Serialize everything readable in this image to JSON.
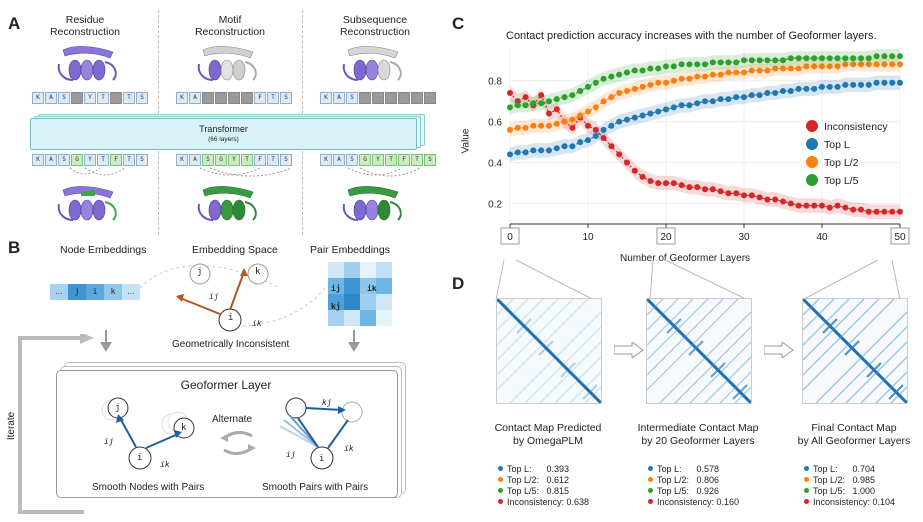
{
  "panels": {
    "a_letter": "A",
    "b_letter": "B",
    "c_letter": "C",
    "d_letter": "D"
  },
  "panel_a": {
    "col1_title": "Residue\nReconstruction",
    "col2_title": "Motif\nReconstruction",
    "col3_title": "Subsequence\nReconstruction",
    "transformer_title": "Transformer",
    "transformer_sub": "(66 layers)",
    "row1_col1": [
      "K",
      "A",
      "S",
      "",
      "Y",
      "T",
      "",
      "T",
      "S"
    ],
    "row1_col1_masked": [
      false,
      false,
      false,
      true,
      false,
      false,
      true,
      false,
      false
    ],
    "row1_col2": [
      "K",
      "A",
      "",
      "",
      "",
      "",
      "F",
      "T",
      "S"
    ],
    "row1_col2_masked": [
      false,
      false,
      true,
      true,
      true,
      true,
      false,
      false,
      false
    ],
    "row1_col3": [
      "K",
      "A",
      "S",
      "",
      "",
      "",
      "",
      "",
      ""
    ],
    "row1_col3_masked": [
      false,
      false,
      false,
      true,
      true,
      true,
      true,
      true,
      true
    ],
    "row2": [
      "K",
      "A",
      "S",
      "G",
      "Y",
      "T",
      "F",
      "T",
      "S"
    ],
    "row2_col1_green": [
      false,
      false,
      false,
      true,
      false,
      false,
      true,
      false,
      false
    ],
    "row2_col2_green": [
      false,
      false,
      true,
      true,
      true,
      true,
      false,
      false,
      false
    ],
    "row2_col3_green": [
      false,
      false,
      false,
      true,
      true,
      true,
      true,
      true,
      true
    ]
  },
  "panel_b": {
    "node_embeddings": "Node Embeddings",
    "embedding_space": "Embedding Space",
    "pair_embeddings": "Pair Embeddings",
    "node_cells": [
      "…",
      "j",
      "i",
      "k",
      "…"
    ],
    "pair_cells": [
      "ij",
      "ik",
      "kj"
    ],
    "node_i": "i",
    "node_j": "j",
    "node_k": "k",
    "edge_ij": "ij",
    "edge_ik": "ik",
    "edge_kj": "kj",
    "geo_inconsistent": "Geometrically Inconsistent",
    "geoformer_layer": "Geoformer Layer",
    "alternate": "Alternate",
    "smooth_nodes": "Smooth Nodes with Pairs",
    "smooth_pairs": "Smooth Pairs with Pairs",
    "iterate": "Iterate"
  },
  "colors": {
    "inconsistency": "#d62728",
    "top_l": "#1f77b4",
    "top_l2": "#ff7f0e",
    "top_l5": "#2ca02c",
    "arrow_brown": "#b5561c",
    "arrow_blue": "#1f5fa0",
    "transformer_fill": "#d8f1f8"
  },
  "chart_data": {
    "type": "line",
    "title": "Contact prediction accuracy increases with the number of Geoformer layers.",
    "xlabel": "Number of Geoformer Layers",
    "ylabel": "Value",
    "xlim": [
      0,
      50
    ],
    "ylim": [
      0.1,
      0.96
    ],
    "xticks": [
      0,
      10,
      20,
      30,
      40,
      50
    ],
    "yticks": [
      0.2,
      0.4,
      0.6,
      0.8
    ],
    "grid": true,
    "legend_position": "center-right",
    "series": [
      {
        "name": "Inconsistency",
        "color": "#d62728",
        "values": [
          0.74,
          0.7,
          0.72,
          0.68,
          0.73,
          0.64,
          0.66,
          0.6,
          0.57,
          0.62,
          0.58,
          0.56,
          0.52,
          0.48,
          0.44,
          0.4,
          0.36,
          0.33,
          0.31,
          0.3,
          0.3,
          0.3,
          0.29,
          0.28,
          0.28,
          0.27,
          0.27,
          0.26,
          0.25,
          0.25,
          0.24,
          0.24,
          0.23,
          0.22,
          0.22,
          0.21,
          0.2,
          0.19,
          0.19,
          0.19,
          0.19,
          0.18,
          0.19,
          0.18,
          0.17,
          0.17,
          0.16,
          0.16,
          0.16,
          0.16,
          0.16
        ]
      },
      {
        "name": "Top L",
        "color": "#1f77b4",
        "values": [
          0.44,
          0.45,
          0.45,
          0.46,
          0.46,
          0.46,
          0.47,
          0.48,
          0.48,
          0.5,
          0.51,
          0.53,
          0.56,
          0.58,
          0.6,
          0.61,
          0.62,
          0.63,
          0.64,
          0.65,
          0.66,
          0.67,
          0.68,
          0.68,
          0.69,
          0.7,
          0.7,
          0.71,
          0.71,
          0.72,
          0.72,
          0.73,
          0.73,
          0.74,
          0.74,
          0.75,
          0.75,
          0.76,
          0.76,
          0.76,
          0.77,
          0.77,
          0.77,
          0.78,
          0.78,
          0.78,
          0.78,
          0.79,
          0.79,
          0.79,
          0.79
        ]
      },
      {
        "name": "Top L/2",
        "color": "#ff7f0e",
        "values": [
          0.56,
          0.57,
          0.57,
          0.58,
          0.58,
          0.58,
          0.59,
          0.6,
          0.61,
          0.63,
          0.65,
          0.67,
          0.7,
          0.72,
          0.74,
          0.75,
          0.76,
          0.77,
          0.78,
          0.79,
          0.79,
          0.8,
          0.81,
          0.81,
          0.82,
          0.82,
          0.83,
          0.83,
          0.84,
          0.84,
          0.84,
          0.85,
          0.85,
          0.85,
          0.86,
          0.86,
          0.86,
          0.86,
          0.87,
          0.87,
          0.87,
          0.87,
          0.87,
          0.88,
          0.88,
          0.88,
          0.88,
          0.88,
          0.88,
          0.88,
          0.88
        ]
      },
      {
        "name": "Top L/5",
        "color": "#2ca02c",
        "values": [
          0.67,
          0.68,
          0.68,
          0.69,
          0.69,
          0.7,
          0.71,
          0.72,
          0.73,
          0.75,
          0.77,
          0.79,
          0.81,
          0.82,
          0.83,
          0.84,
          0.85,
          0.85,
          0.86,
          0.86,
          0.87,
          0.87,
          0.88,
          0.88,
          0.88,
          0.88,
          0.89,
          0.89,
          0.89,
          0.89,
          0.9,
          0.9,
          0.9,
          0.9,
          0.9,
          0.9,
          0.91,
          0.91,
          0.91,
          0.91,
          0.91,
          0.91,
          0.91,
          0.91,
          0.91,
          0.91,
          0.91,
          0.92,
          0.92,
          0.92,
          0.92
        ]
      }
    ]
  },
  "panel_d": {
    "zoom_labels": [
      "0",
      "20",
      "50"
    ],
    "maps": [
      {
        "caption": "Contact Map Predicted\nby OmegaPLM",
        "metrics": [
          {
            "label": "Top L:      0.393",
            "color": "#1f77b4"
          },
          {
            "label": "Top L/2:   0.612",
            "color": "#ff7f0e"
          },
          {
            "label": "Top L/5:   0.815",
            "color": "#2ca02c"
          },
          {
            "label": "Inconsistency: 0.638",
            "color": "#d62728"
          }
        ]
      },
      {
        "caption": "Intermediate Contact Map\nby 20 Geoformer Layers",
        "metrics": [
          {
            "label": "Top L:      0.578",
            "color": "#1f77b4"
          },
          {
            "label": "Top L/2:   0.806",
            "color": "#ff7f0e"
          },
          {
            "label": "Top L/5:   0.926",
            "color": "#2ca02c"
          },
          {
            "label": "Inconsistency: 0.160",
            "color": "#d62728"
          }
        ]
      },
      {
        "caption": "Final Contact Map\nby All Geoformer Layers",
        "metrics": [
          {
            "label": "Top L:      0.704",
            "color": "#1f77b4"
          },
          {
            "label": "Top L/2:   0.985",
            "color": "#ff7f0e"
          },
          {
            "label": "Top L/5:   1.000",
            "color": "#2ca02c"
          },
          {
            "label": "Inconsistency: 0.104",
            "color": "#d62728"
          }
        ]
      }
    ]
  }
}
